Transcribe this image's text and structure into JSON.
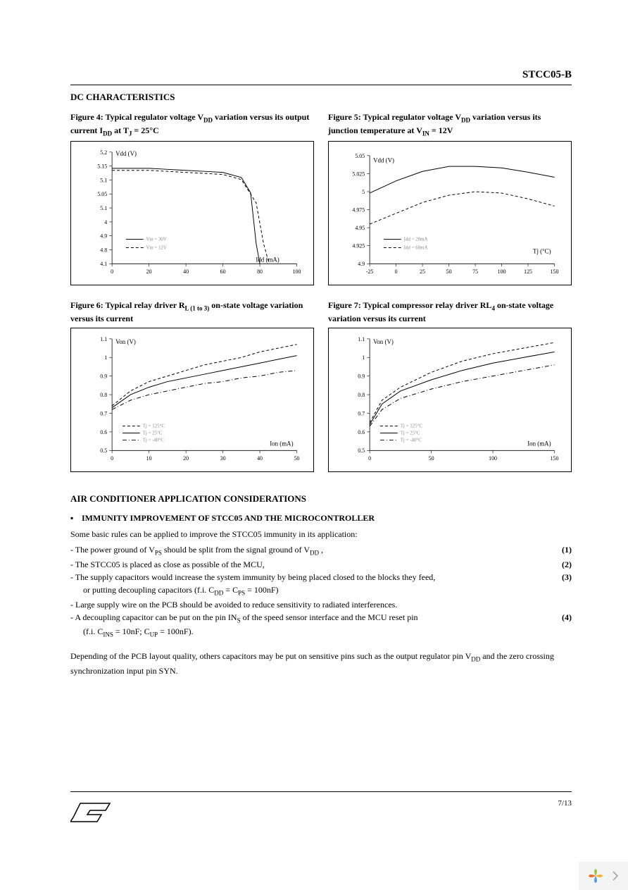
{
  "doc": {
    "id": "STCC05-B",
    "page": "7/13"
  },
  "section1": "DC CHARACTERISTICS",
  "figs": {
    "f4": {
      "title_a": "Figure 4: Typical regulator voltage V",
      "title_sub1": "DD",
      "title_b": " variation versus its output current I",
      "title_sub2": "DD",
      "title_c": " at T",
      "title_sub3": "J",
      "title_d": " = 25°C",
      "ylabel": "Vdd (V)",
      "xlabel": "Idd (mA)",
      "xticks": [
        0,
        20,
        40,
        60,
        80,
        100
      ],
      "yticks": [
        "4.1",
        "4.8",
        "4.9",
        "4",
        "5.1",
        "5.05",
        "5.1",
        "5.15",
        "5.2"
      ],
      "ylim_labels": [
        "4.1",
        "4.8",
        "4.9",
        "4",
        "5.1",
        "5.05",
        "5.1",
        "5.15",
        "5.2"
      ],
      "legend": [
        "Vin = 30V",
        "Vin = 12V"
      ],
      "solid": {
        "x": [
          0,
          10,
          20,
          30,
          40,
          50,
          60,
          70,
          75,
          78,
          80
        ],
        "y": [
          5.04,
          5.04,
          5.04,
          5.03,
          5.02,
          5.01,
          5.0,
          4.95,
          4.8,
          4.3,
          4.1
        ]
      },
      "dashed": {
        "x": [
          0,
          10,
          20,
          30,
          40,
          50,
          60,
          70,
          78,
          82,
          85
        ],
        "y": [
          5.02,
          5.02,
          5.02,
          5.01,
          5.0,
          4.99,
          4.98,
          4.93,
          4.7,
          4.3,
          4.1
        ]
      }
    },
    "f5": {
      "title_a": "Figure 5: Typical regulator voltage V",
      "title_sub1": "DD",
      "title_b": " variation versus its junction temperature at V",
      "title_sub2": "IN",
      "title_c": " = 12V",
      "ylabel": "Vdd (V)",
      "xlabel": "Tj (°C)",
      "xticks": [
        -25,
        0,
        25,
        50,
        75,
        100,
        125,
        150
      ],
      "ylim_labels": [
        "4.9",
        "4.925",
        "4.95",
        "4.975",
        "5",
        "5.025",
        "5.05"
      ],
      "legend": [
        "Idd = 20mA",
        "Idd = 60mA"
      ],
      "solid": {
        "x": [
          -25,
          0,
          25,
          50,
          75,
          100,
          125,
          150
        ],
        "y": [
          4.998,
          5.015,
          5.028,
          5.035,
          5.035,
          5.033,
          5.027,
          5.02
        ]
      },
      "dashed": {
        "x": [
          -25,
          0,
          25,
          50,
          75,
          100,
          125,
          150
        ],
        "y": [
          4.955,
          4.97,
          4.985,
          4.995,
          5.0,
          4.998,
          4.99,
          4.98
        ]
      }
    },
    "f6": {
      "title_a": "Figure 6: Typical relay driver R",
      "title_sub1": "L (1 to 3)",
      "title_b": " on-state voltage variation versus its current",
      "ylabel": "Von (V)",
      "xlabel": "Ion (mA)",
      "xticks": [
        0,
        10,
        20,
        30,
        40,
        50
      ],
      "ylim_labels": [
        "0.5",
        "0.6",
        "0.7",
        "0.8",
        "0.9",
        "1",
        "1.1"
      ],
      "legend": [
        "Tj = 125°C",
        "Tj = 25°C",
        "Tj = -40°C"
      ],
      "dashed": {
        "x": [
          0,
          5,
          10,
          15,
          20,
          25,
          30,
          35,
          40,
          45,
          50
        ],
        "y": [
          0.74,
          0.82,
          0.87,
          0.9,
          0.93,
          0.96,
          0.98,
          1.0,
          1.03,
          1.05,
          1.07
        ]
      },
      "solid": {
        "x": [
          0,
          5,
          10,
          15,
          20,
          25,
          30,
          35,
          40,
          45,
          50
        ],
        "y": [
          0.73,
          0.8,
          0.84,
          0.87,
          0.89,
          0.91,
          0.93,
          0.95,
          0.97,
          0.99,
          1.01
        ]
      },
      "dashdot": {
        "x": [
          0,
          5,
          10,
          15,
          20,
          25,
          30,
          35,
          40,
          45,
          50
        ],
        "y": [
          0.72,
          0.77,
          0.8,
          0.82,
          0.84,
          0.86,
          0.87,
          0.89,
          0.9,
          0.92,
          0.93
        ]
      }
    },
    "f7": {
      "title_a": "Figure 7: Typical compressor relay driver RL",
      "title_sub1": "4",
      "title_b": " on-state voltage variation versus its current",
      "ylabel": "Von (V)",
      "xlabel": "Ion (mA)",
      "xticks": [
        0,
        50,
        100,
        150
      ],
      "ylim_labels": [
        "0.5",
        "0.6",
        "0.7",
        "0.8",
        "0.9",
        "1",
        "1.1"
      ],
      "legend": [
        "Tj = 125°C",
        "Tj = 25°C",
        "Tj = -40°C"
      ],
      "dashed": {
        "x": [
          0,
          10,
          25,
          50,
          75,
          100,
          125,
          150
        ],
        "y": [
          0.65,
          0.77,
          0.84,
          0.92,
          0.98,
          1.02,
          1.05,
          1.08
        ]
      },
      "solid": {
        "x": [
          0,
          10,
          25,
          50,
          75,
          100,
          125,
          150
        ],
        "y": [
          0.64,
          0.75,
          0.82,
          0.88,
          0.93,
          0.97,
          1.0,
          1.03
        ]
      },
      "dashdot": {
        "x": [
          0,
          10,
          25,
          50,
          75,
          100,
          125,
          150
        ],
        "y": [
          0.63,
          0.72,
          0.78,
          0.83,
          0.87,
          0.9,
          0.93,
          0.96
        ]
      }
    }
  },
  "section2": "AIR CONDITIONER APPLICATION CONSIDERATIONS",
  "bullet1": "IMMUNITY IMPROVEMENT OF STCC05 AND THE MICROCONTROLLER",
  "intro": "Some basic rules can be applied to improve the STCC05 immunity in its application:",
  "rules": [
    {
      "t": "- The power ground of V",
      "sub": "PS",
      "t2": "   should be split from the signal ground of V",
      "sub2": "DD",
      "t3": " ,",
      "n": "(1)"
    },
    {
      "t": "- The STCC05 is placed as close as possible of the MCU,",
      "n": "(2)"
    },
    {
      "t": "- The supply capacitors would increase the system immunity by being placed closed to the blocks they feed,",
      "n": "(3)"
    },
    {
      "t": "   or putting decoupling capacitors (f.i. C",
      "sub": "DD",
      "t2": " = C",
      "sub2": "PS",
      "t3": "   = 100nF)",
      "indent": true
    },
    {
      "t": "- Large supply wire on the PCB should be avoided to reduce sensitivity to radiated interferences."
    },
    {
      "t": "- A decoupling capacitor can be put on the pin IN",
      "sub": "S",
      "t2": " of the speed sensor interface and the MCU reset pin",
      "n": "(4)"
    },
    {
      "t": "   (f.i. C",
      "sub": "INS",
      "t2": "   = 10nF; C",
      "sub2": "UP",
      "t3": "   = 100nF).",
      "indent": true
    }
  ],
  "outro_a": "Depending of the PCB layout quality, others capacitors may be put on sensitive pins such as the output regulator pin V",
  "outro_sub": "DD",
  "outro_b": "  and the zero crossing synchronization input pin SYN."
}
